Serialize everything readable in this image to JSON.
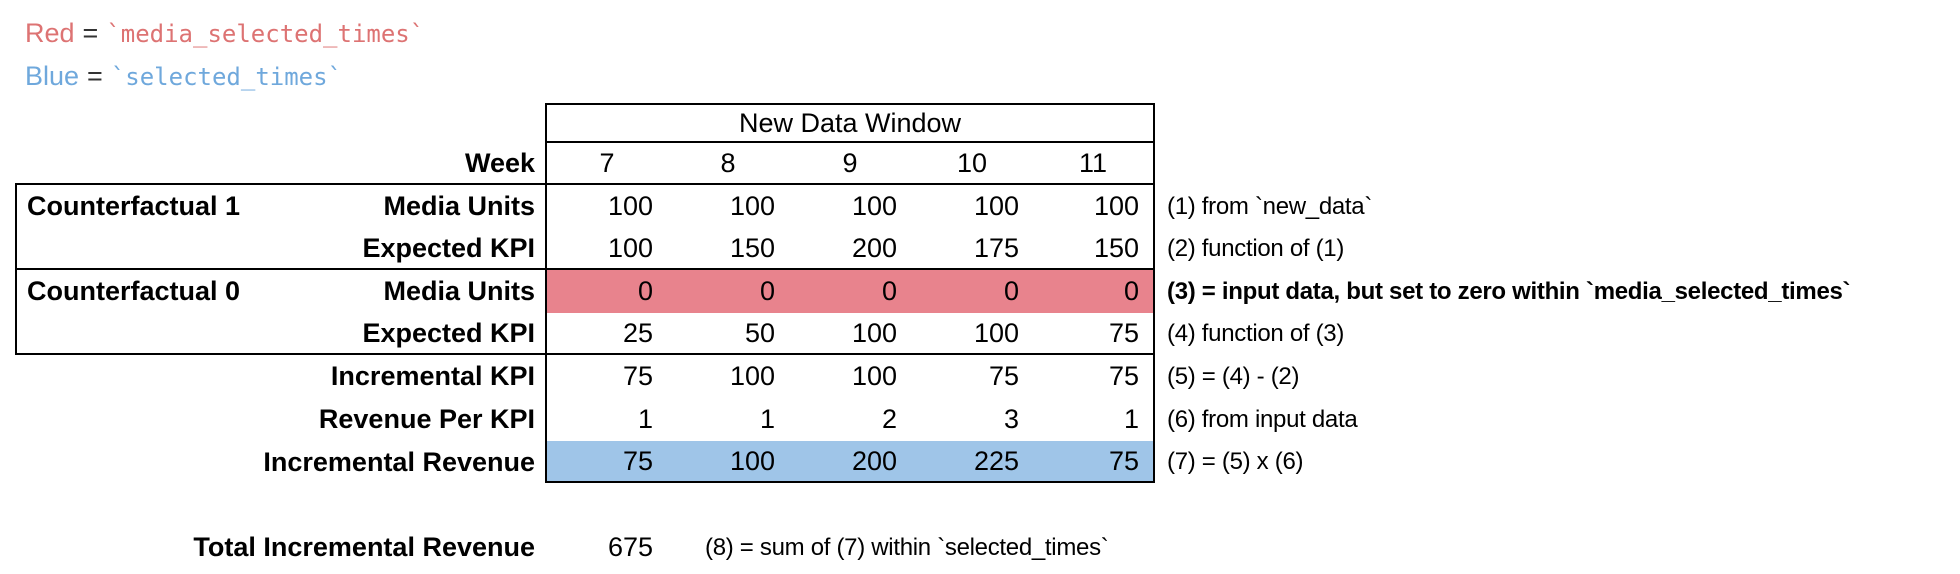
{
  "colors": {
    "red_text": "#dd7373",
    "blue_text": "#6fa8dc",
    "red_fill": "#e8838d",
    "blue_fill": "#9fc5e8",
    "border": "#000000"
  },
  "legend": {
    "red": {
      "label": "Red",
      "eq": "=",
      "code": "`media_selected_times`"
    },
    "blue": {
      "label": "Blue",
      "eq": "=",
      "code": "`selected_times`"
    }
  },
  "table": {
    "window_header": "New Data Window",
    "week": {
      "label": "Week",
      "values": [
        "7",
        "8",
        "9",
        "10",
        "11"
      ]
    },
    "groups": {
      "c1": "Counterfactual 1",
      "c0": "Counterfactual 0"
    },
    "rows": [
      {
        "label": "Media Units",
        "values": [
          "100",
          "100",
          "100",
          "100",
          "100"
        ],
        "note": "(1) from `new_data`"
      },
      {
        "label": "Expected KPI",
        "values": [
          "100",
          "150",
          "200",
          "175",
          "150"
        ],
        "note": "(2) function of (1)"
      },
      {
        "label": "Media Units",
        "values": [
          "0",
          "0",
          "0",
          "0",
          "0"
        ],
        "note": "(3) = input data, but set to zero within `media_selected_times`",
        "highlight": "red"
      },
      {
        "label": "Expected KPI",
        "values": [
          "25",
          "50",
          "100",
          "100",
          "75"
        ],
        "note": "(4) function of (3)"
      },
      {
        "label": "Incremental KPI",
        "values": [
          "75",
          "100",
          "100",
          "75",
          "75"
        ],
        "note": "(5) = (4) - (2)"
      },
      {
        "label": "Revenue Per KPI",
        "values": [
          "1",
          "1",
          "2",
          "3",
          "1"
        ],
        "note": "(6) from input data"
      },
      {
        "label": "Incremental Revenue",
        "values": [
          "75",
          "100",
          "200",
          "225",
          "75"
        ],
        "note": "(7) = (5) x (6)",
        "highlight": "blue"
      }
    ]
  },
  "total": {
    "label": "Total Incremental Revenue",
    "value": "675",
    "note": "(8) = sum of (7) within `selected_times`"
  }
}
